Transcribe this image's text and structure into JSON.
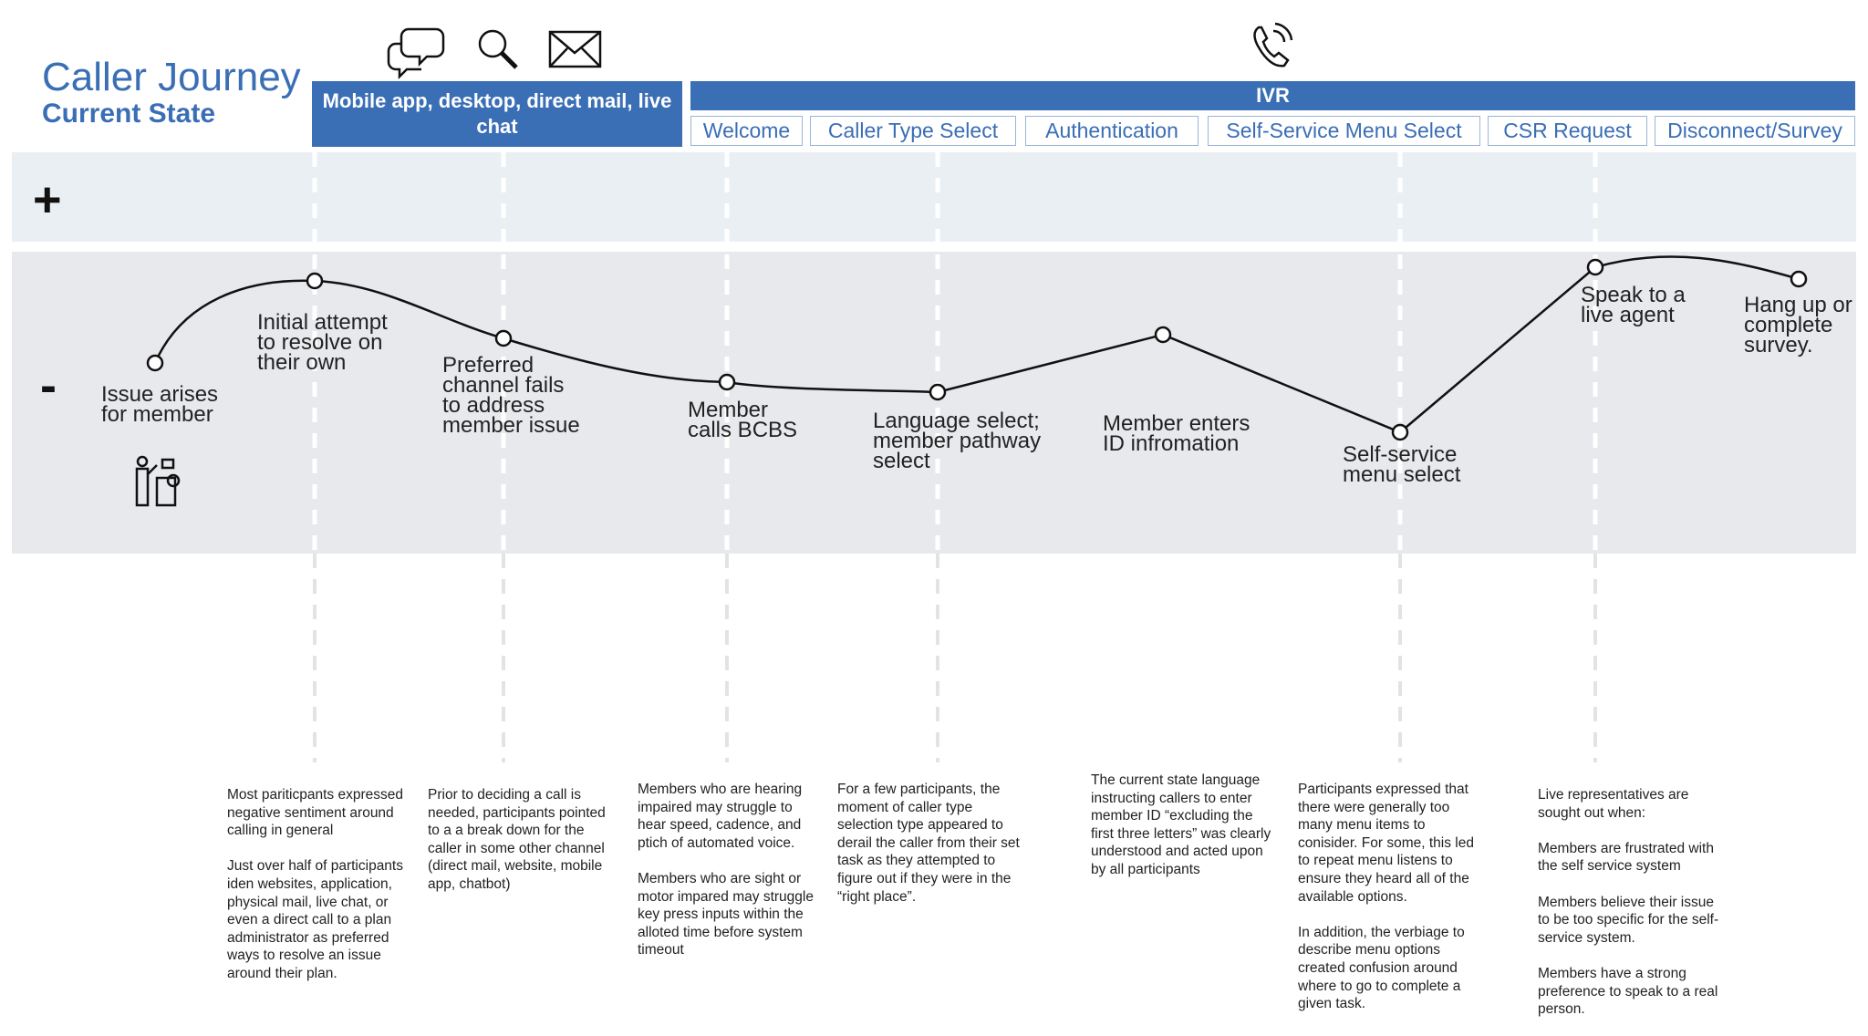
{
  "header": {
    "title": "Caller Journey",
    "subtitle": "Current State",
    "channel_label": "Mobile app, desktop, direct mail, live chat",
    "ivr_label": "IVR",
    "stages": [
      "Welcome",
      "Caller Type Select",
      "Authentication",
      "Self-Service Menu Select",
      "CSR Request",
      "Disconnect/Survey"
    ]
  },
  "sentiment": {
    "positive": "+",
    "negative": "-"
  },
  "steps": [
    [
      "Issue arises",
      "for member"
    ],
    [
      "Initial attempt",
      "to resolve on",
      "their own"
    ],
    [
      "Preferred",
      "channel fails",
      "to address",
      "member issue"
    ],
    [
      "Member",
      "calls BCBS"
    ],
    [
      "Language select;",
      "member pathway",
      "select"
    ],
    [
      "Member enters",
      "ID infromation"
    ],
    [
      "Self-service",
      "menu select"
    ],
    [
      "Speak to a",
      "live agent"
    ],
    [
      "Hang up or",
      "complete",
      "survey."
    ]
  ],
  "notes": [
    [
      "Most pariticpants expressed negative sentiment around calling in general",
      "Just over half of participants iden websites, application, physical mail, live chat, or even a direct call to a plan administrator as preferred ways to resolve an issue around their plan."
    ],
    [
      "Prior to deciding a call is needed, participants pointed to a a break down for the caller in some other channel (direct mail, website, mobile app, chatbot)"
    ],
    [
      "Members who are hearing impaired may struggle to hear speed, cadence, and ptich of automated voice.",
      "Members who are sight or motor impared may struggle key press inputs within the alloted time before system timeout"
    ],
    [
      "For a few participants, the moment of caller type selection type appeared to derail the caller from their set task as they attempted to figure out if they were in the “right place”."
    ],
    [
      "The current state language instructing callers to enter member ID “excluding the first three letters” was clearly understood and acted upon by all participants"
    ],
    [
      "Participants expressed that there were generally too many menu items to conisider. For some, this led to repeat menu listens to ensure they heard all of the available options.",
      "In addition, the verbiage to describe menu options created confusion around where to go to complete a given task."
    ],
    [
      "Live representatives are sought out when:",
      "Members are frustrated with the self service system",
      "Members believe their issue to be too specific for the self-service system.",
      "Members have a strong preference to speak to a real person."
    ]
  ]
}
